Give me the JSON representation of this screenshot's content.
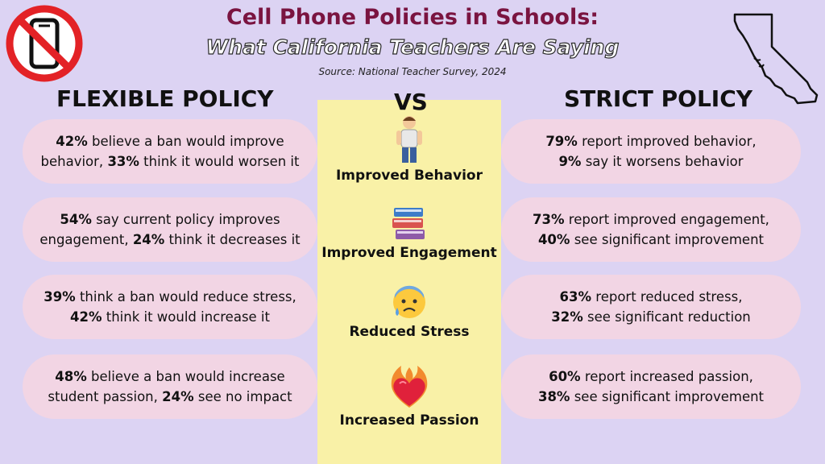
{
  "header": {
    "title": "Cell Phone Policies in Schools:",
    "subtitle": "What California Teachers Are Saying",
    "source": "Source: National Teacher Survey, 2024"
  },
  "columns": {
    "left": "FLEXIBLE POLICY",
    "vs": "VS",
    "right": "STRICT POLICY"
  },
  "rows": [
    {
      "category": "Improved Behavior",
      "icon": "person-icon",
      "flexible": {
        "p1": "42%",
        "t1": " believe a ban would improve",
        "t2": "behavior, ",
        "p2": "33%",
        "t3": " think it would worsen it"
      },
      "strict": {
        "p1": "79%",
        "t1": " report improved behavior,",
        "t2": "",
        "p2": "9%",
        "t3": " say it worsens behavior"
      }
    },
    {
      "category": "Improved Engagement",
      "icon": "books-icon",
      "flexible": {
        "p1": "54%",
        "t1": " say current policy improves",
        "t2": "engagement, ",
        "p2": "24%",
        "t3": " think it decreases it"
      },
      "strict": {
        "p1": "73%",
        "t1": " report improved engagement,",
        "t2": "",
        "p2": "40%",
        "t3": " see significant improvement"
      }
    },
    {
      "category": "Reduced Stress",
      "icon": "anxious-face-icon",
      "flexible": {
        "p1": "39%",
        "t1": " think a ban would reduce stress,",
        "t2": "",
        "p2": "42%",
        "t3": " think it would increase it"
      },
      "strict": {
        "p1": "63%",
        "t1": " report reduced stress,",
        "t2": "",
        "p2": "32%",
        "t3": " see significant reduction"
      }
    },
    {
      "category": "Increased Passion",
      "icon": "heart-on-fire-icon",
      "flexible": {
        "p1": "48%",
        "t1": " believe a ban would increase",
        "t2": "student passion, ",
        "p2": "24%",
        "t3": " see no impact"
      },
      "strict": {
        "p1": "60%",
        "t1": " report increased passion,",
        "t2": "",
        "p2": "38%",
        "t3": " see significant improvement"
      }
    }
  ],
  "decor": {
    "left_icon": "no-phone-icon",
    "right_icon": "california-outline-icon"
  }
}
